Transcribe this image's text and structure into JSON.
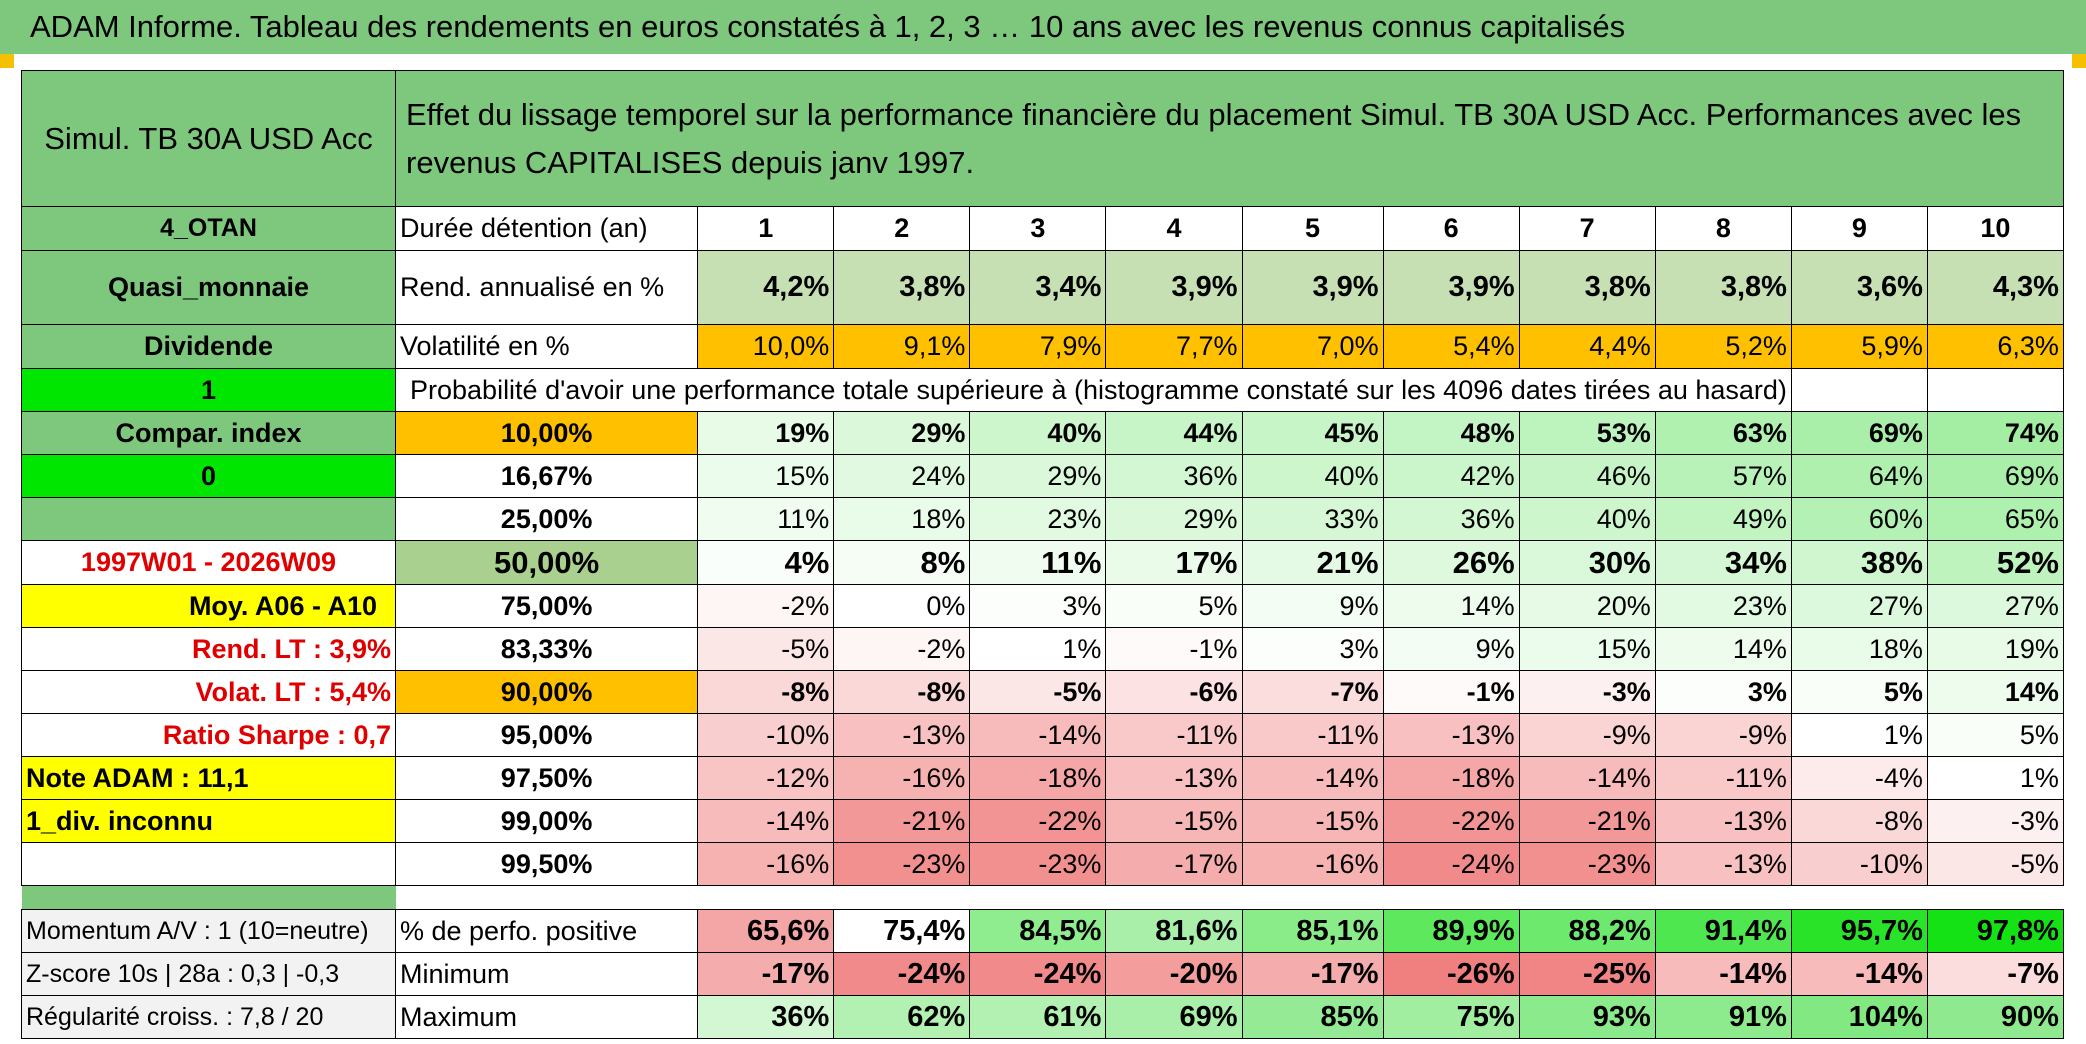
{
  "header": {
    "title": "ADAM Informe. Tableau des rendements en euros constatés à 1, 2, 3 … 10 ans avec les revenus connus capitalisés"
  },
  "colors": {
    "header_green": "#7ec87e",
    "bright_green": "#00e600",
    "yellow": "#ffff00",
    "orange": "#ffc000",
    "light_green_cell": "#c6e0b4",
    "red_text": "#e00000"
  },
  "side": {
    "fund_name": "Simul. TB 30A USD Acc",
    "code": "4_OTAN",
    "category": "Quasi_monnaie",
    "income_type": "Dividende",
    "flag_value": "1",
    "compar_label": "Compar. index",
    "compar_value": "0",
    "period": "1997W01 - 2026W09",
    "avg_label": "Moy. A06 - A10",
    "rend_lt": "Rend. LT :   3,9%",
    "volat_lt": "Volat. LT :   5,4%",
    "sharpe": "Ratio Sharpe :    0,7",
    "note": "Note ADAM : 11,1",
    "div_info": "1_div. inconnu",
    "momentum": "Momentum A/V : 1 (10=neutre)",
    "zscore": "Z-score 10s | 28a : 0,3 | -0,3",
    "regularite": "Régularité croiss. : 7,8 / 20"
  },
  "main": {
    "description": "Effet du lissage temporel sur la performance financière du placement Simul. TB 30A USD Acc. Performances avec les revenus CAPITALISES depuis janv 1997.",
    "duration_label": "Durée détention (an)",
    "years": [
      "1",
      "2",
      "3",
      "4",
      "5",
      "6",
      "7",
      "8",
      "9",
      "10"
    ],
    "rend_label": "Rend. annualisé en %",
    "rend": [
      "4,2%",
      "3,8%",
      "3,4%",
      "3,9%",
      "3,9%",
      "3,9%",
      "3,8%",
      "3,8%",
      "3,6%",
      "4,3%"
    ],
    "vol_label": "Volatilité en %",
    "vol": [
      "10,0%",
      "9,1%",
      "7,9%",
      "7,7%",
      "7,0%",
      "5,4%",
      "4,4%",
      "5,2%",
      "5,9%",
      "6,3%"
    ],
    "prob_label": "Probabilité d'avoir une performance totale supérieure à (histogramme constaté sur les 4096 dates tirées au hasard)",
    "quantiles": [
      {
        "label": "10,00%",
        "values": [
          "19%",
          "29%",
          "40%",
          "44%",
          "45%",
          "48%",
          "53%",
          "63%",
          "69%",
          "74%"
        ]
      },
      {
        "label": "16,67%",
        "values": [
          "15%",
          "24%",
          "29%",
          "36%",
          "40%",
          "42%",
          "46%",
          "57%",
          "64%",
          "69%"
        ]
      },
      {
        "label": "25,00%",
        "values": [
          "11%",
          "18%",
          "23%",
          "29%",
          "33%",
          "36%",
          "40%",
          "49%",
          "60%",
          "65%"
        ]
      },
      {
        "label": "50,00%",
        "values": [
          "4%",
          "8%",
          "11%",
          "17%",
          "21%",
          "26%",
          "30%",
          "34%",
          "38%",
          "52%"
        ]
      },
      {
        "label": "75,00%",
        "values": [
          "-2%",
          "0%",
          "3%",
          "5%",
          "9%",
          "14%",
          "20%",
          "23%",
          "27%",
          "27%"
        ]
      },
      {
        "label": "83,33%",
        "values": [
          "-5%",
          "-2%",
          "1%",
          "-1%",
          "3%",
          "9%",
          "15%",
          "14%",
          "18%",
          "19%"
        ]
      },
      {
        "label": "90,00%",
        "values": [
          "-8%",
          "-8%",
          "-5%",
          "-6%",
          "-7%",
          "-1%",
          "-3%",
          "3%",
          "5%",
          "14%"
        ]
      },
      {
        "label": "95,00%",
        "values": [
          "-10%",
          "-13%",
          "-14%",
          "-11%",
          "-11%",
          "-13%",
          "-9%",
          "-9%",
          "1%",
          "5%"
        ]
      },
      {
        "label": "97,50%",
        "values": [
          "-12%",
          "-16%",
          "-18%",
          "-13%",
          "-14%",
          "-18%",
          "-14%",
          "-11%",
          "-4%",
          "1%"
        ]
      },
      {
        "label": "99,00%",
        "values": [
          "-14%",
          "-21%",
          "-22%",
          "-15%",
          "-15%",
          "-22%",
          "-21%",
          "-13%",
          "-8%",
          "-3%"
        ]
      },
      {
        "label": "99,50%",
        "values": [
          "-16%",
          "-23%",
          "-23%",
          "-17%",
          "-16%",
          "-24%",
          "-23%",
          "-13%",
          "-10%",
          "-5%"
        ]
      }
    ],
    "pos_label": "% de perfo. positive",
    "pos": [
      "65,6%",
      "75,4%",
      "84,5%",
      "81,6%",
      "85,1%",
      "89,9%",
      "88,2%",
      "91,4%",
      "95,7%",
      "97,8%"
    ],
    "min_label": "Minimum",
    "min": [
      "-17%",
      "-24%",
      "-24%",
      "-20%",
      "-17%",
      "-26%",
      "-25%",
      "-14%",
      "-14%",
      "-7%"
    ],
    "max_label": "Maximum",
    "max": [
      "36%",
      "62%",
      "61%",
      "69%",
      "85%",
      "75%",
      "93%",
      "91%",
      "104%",
      "90%"
    ]
  }
}
